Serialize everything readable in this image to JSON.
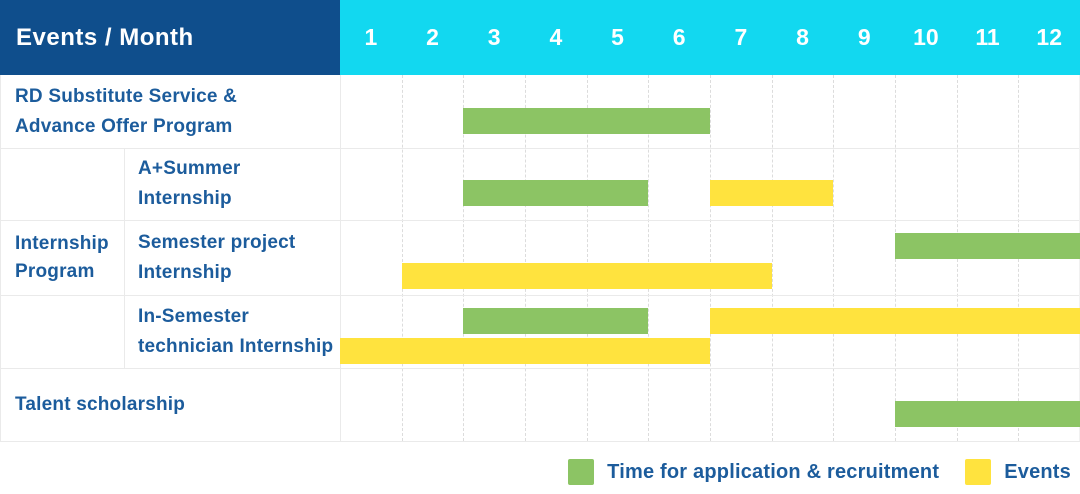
{
  "header": {
    "corner_label": "Events / Month",
    "months": [
      "1",
      "2",
      "3",
      "4",
      "5",
      "6",
      "7",
      "8",
      "9",
      "10",
      "11",
      "12"
    ]
  },
  "colors": {
    "corner_bg": "#0F4E8C",
    "months_bg": "#12D8F0",
    "header_text": "#FFFFFF",
    "label_text": "#1C5C9C",
    "grid_solid": "#EAEAEA",
    "grid_dashed": "#DCDCDC",
    "recruitment": "#8CC464",
    "event": "#FFE33E"
  },
  "legend": {
    "items": [
      {
        "key": "recruitment",
        "label": "Time for application & recruitment"
      },
      {
        "key": "event",
        "label": "Events"
      }
    ]
  },
  "chart_data": {
    "type": "bar",
    "subtype": "gantt",
    "x_unit": "month",
    "x_range": [
      1,
      12
    ],
    "categories": [
      "1",
      "2",
      "3",
      "4",
      "5",
      "6",
      "7",
      "8",
      "9",
      "10",
      "11",
      "12"
    ],
    "series_legend": {
      "recruitment": "Time for application & recruitment",
      "event": "Events"
    },
    "group_label": "Internship Program",
    "group_label_lines": [
      "Internship",
      "Program"
    ],
    "rows": [
      {
        "label": "RD Substitute Service & Advance Offer Program",
        "label_lines": [
          "RD Substitute Service &",
          "Advance Offer Program"
        ],
        "group": "",
        "lanes": 1,
        "bars": [
          {
            "series": "recruitment",
            "start_month": 3,
            "end_month": 6,
            "lane": 0
          }
        ]
      },
      {
        "label": "A+Summer Internship",
        "label_lines": [
          "A+Summer",
          "Internship"
        ],
        "group": "Internship Program",
        "lanes": 1,
        "bars": [
          {
            "series": "recruitment",
            "start_month": 3,
            "end_month": 5,
            "lane": 0
          },
          {
            "series": "event",
            "start_month": 7,
            "end_month": 8,
            "lane": 0
          }
        ]
      },
      {
        "label": "Semester project Internship",
        "label_lines": [
          "Semester project",
          "Internship"
        ],
        "group": "Internship Program",
        "lanes": 2,
        "bars": [
          {
            "series": "recruitment",
            "start_month": 10,
            "end_month": 12,
            "lane": 0
          },
          {
            "series": "event",
            "start_month": 2,
            "end_month": 7,
            "lane": 1
          }
        ]
      },
      {
        "label": "In-Semester technician Internship",
        "label_lines": [
          "In-Semester",
          "technician Internship"
        ],
        "group": "Internship Program",
        "lanes": 2,
        "bars": [
          {
            "series": "recruitment",
            "start_month": 3,
            "end_month": 5,
            "lane": 0
          },
          {
            "series": "event",
            "start_month": 7,
            "end_month": 12,
            "lane": 0
          },
          {
            "series": "event",
            "start_month": 1,
            "end_month": 6,
            "lane": 1
          }
        ]
      },
      {
        "label": "Talent scholarship",
        "label_lines": [
          "Talent scholarship"
        ],
        "group": "",
        "lanes": 1,
        "bars": [
          {
            "series": "recruitment",
            "start_month": 10,
            "end_month": 12,
            "lane": 0
          }
        ]
      }
    ]
  }
}
